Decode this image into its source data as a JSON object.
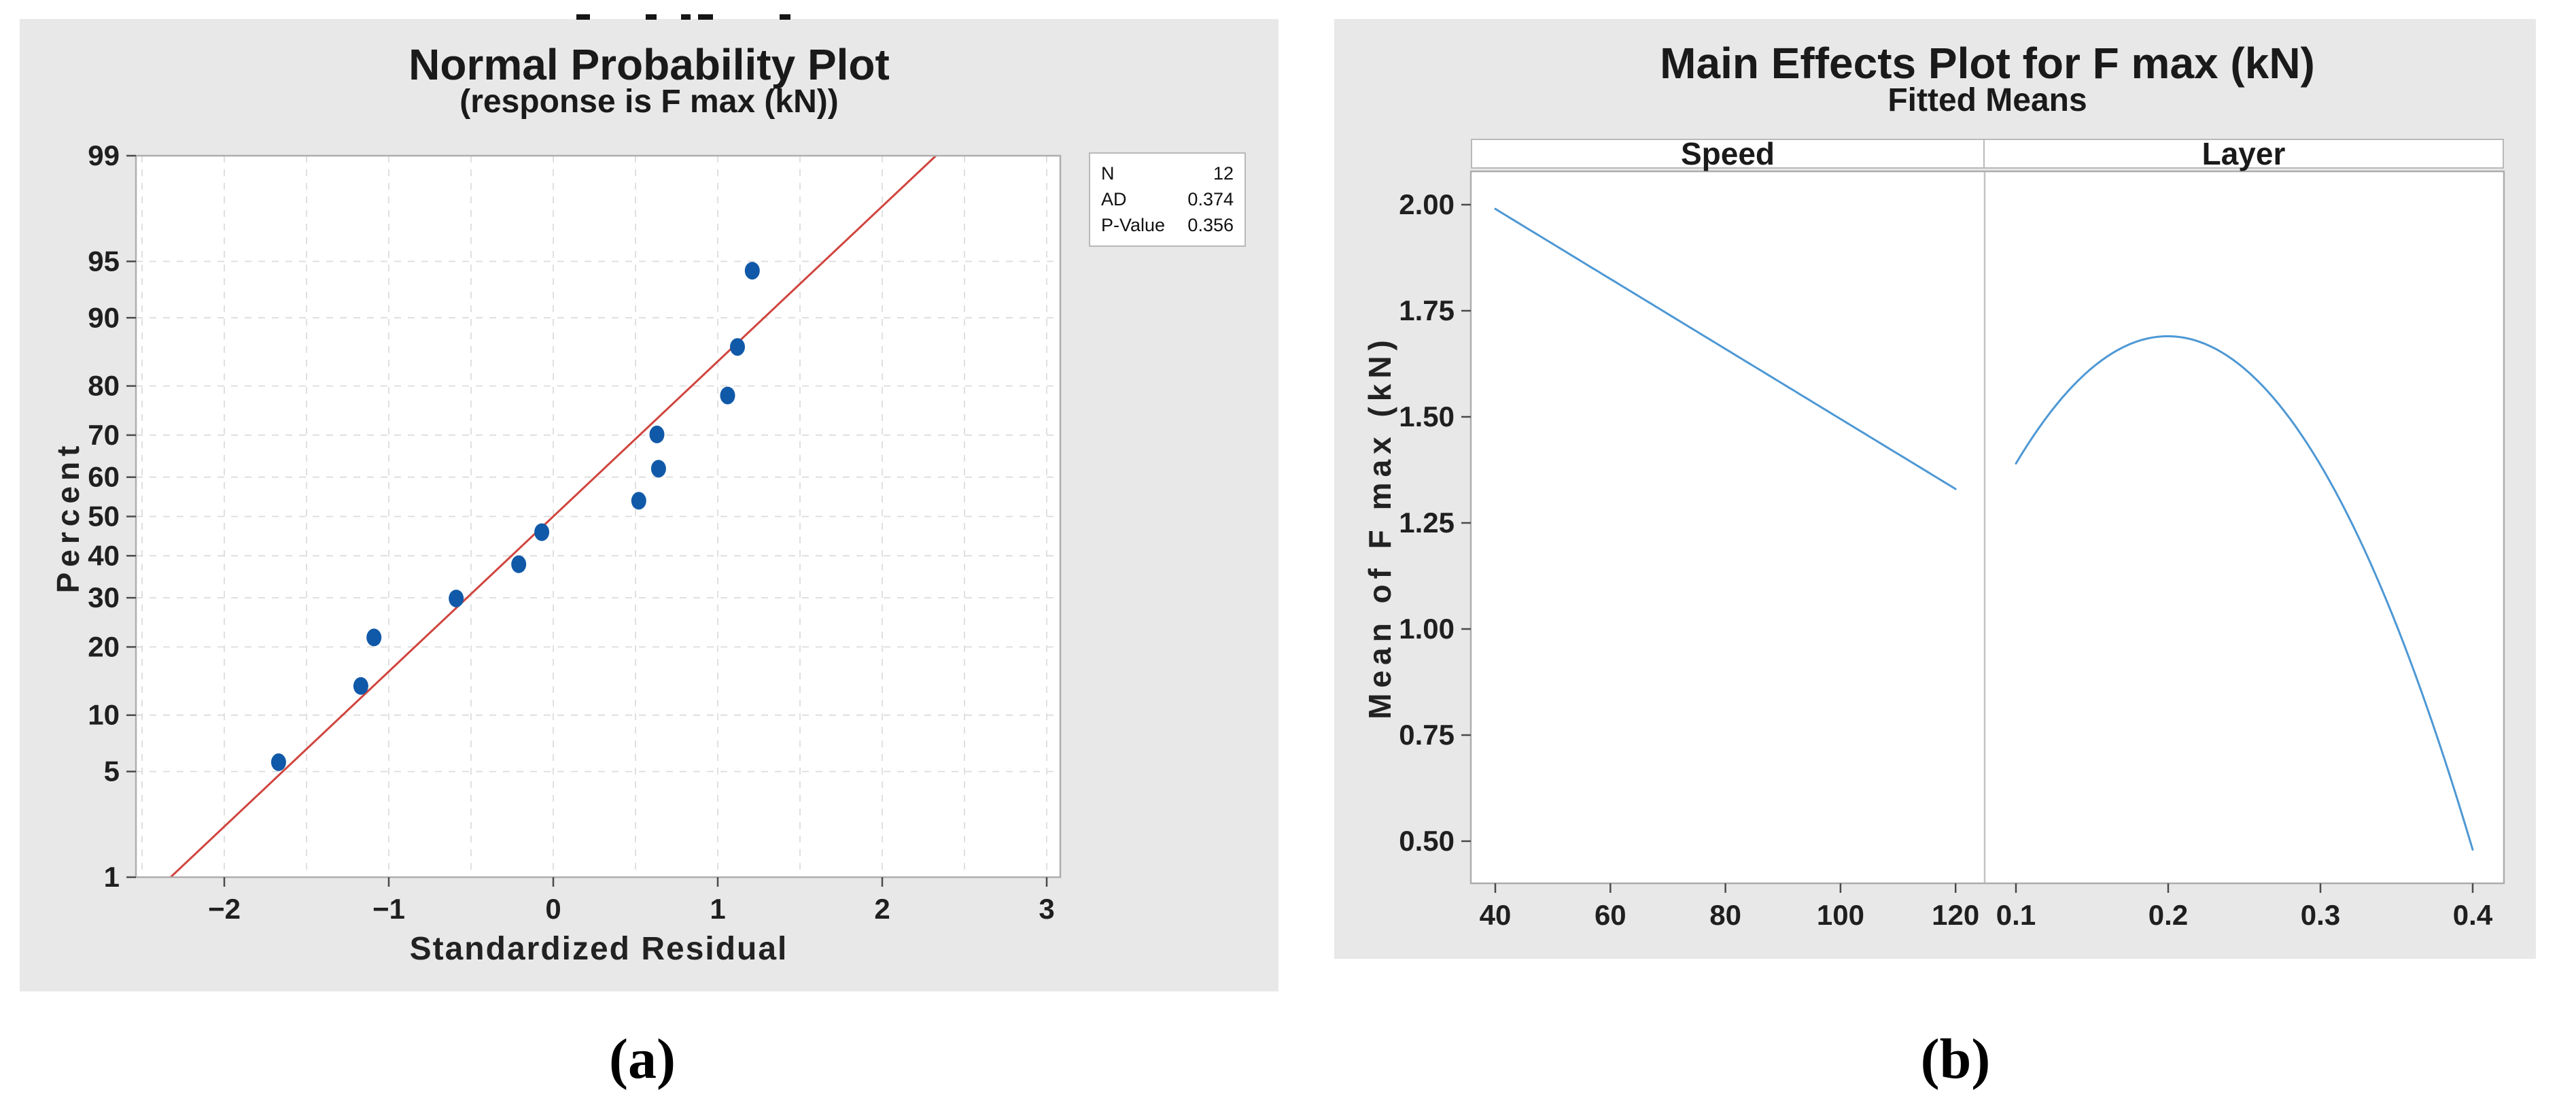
{
  "page": {
    "background": "#ffffff",
    "card_background": "#e8e8e8"
  },
  "captions": {
    "a": "(a)",
    "b": "(b)"
  },
  "chart_data": [
    {
      "id": "normal-probability-plot",
      "type": "scatter",
      "title": "Normal Probability Plot",
      "subtitle": "(response is F max (kN))",
      "xlabel": "Standardized Residual",
      "ylabel": "Percent",
      "y_scale": "normal-probability",
      "xlim": [
        -2.54,
        3.08
      ],
      "x_ticks": [
        {
          "v": -2,
          "label": "−2"
        },
        {
          "v": -1,
          "label": "−1"
        },
        {
          "v": 0,
          "label": "0"
        },
        {
          "v": 1,
          "label": "1"
        },
        {
          "v": 2,
          "label": "2"
        },
        {
          "v": 3,
          "label": "3"
        }
      ],
      "y_ticks": [
        {
          "v": 1,
          "label": "1"
        },
        {
          "v": 5,
          "label": "5"
        },
        {
          "v": 10,
          "label": "10"
        },
        {
          "v": 20,
          "label": "20"
        },
        {
          "v": 30,
          "label": "30"
        },
        {
          "v": 40,
          "label": "40"
        },
        {
          "v": 50,
          "label": "50"
        },
        {
          "v": 60,
          "label": "60"
        },
        {
          "v": 70,
          "label": "70"
        },
        {
          "v": 80,
          "label": "80"
        },
        {
          "v": 90,
          "label": "90"
        },
        {
          "v": 95,
          "label": "95"
        },
        {
          "v": 99,
          "label": "99"
        }
      ],
      "points": {
        "standardized_residual": [
          -1.67,
          -1.17,
          -1.09,
          -0.59,
          -0.21,
          -0.07,
          0.52,
          0.64,
          0.63,
          1.06,
          1.12,
          1.21
        ],
        "percent": [
          5.65,
          13.71,
          21.77,
          29.84,
          37.9,
          45.97,
          54.03,
          62.1,
          70.16,
          78.23,
          86.29,
          94.35
        ]
      },
      "fit_line": {
        "mean": 0,
        "stdev": 1,
        "from_percent": 1,
        "to_percent": 99
      },
      "legend": {
        "position": "top-right",
        "rows": [
          {
            "label": "N",
            "value": "12"
          },
          {
            "label": "AD",
            "value": "0.374"
          },
          {
            "label": "P-Value",
            "value": "0.356"
          }
        ]
      },
      "grid": {
        "style": "dashed",
        "x_step": 0.5,
        "y_at": "labeled percent ticks"
      },
      "colors": {
        "point": "#1059A8",
        "fit_line": "#D0453E",
        "grid": "#DCDCDC"
      }
    },
    {
      "id": "main-effects-plot",
      "type": "line",
      "title": "Main Effects Plot for F max (kN)",
      "subtitle": "Fitted Means",
      "ylabel": "Mean of F max (kN)",
      "ylim": [
        0.4,
        2.08
      ],
      "y_ticks": [
        {
          "v": 2.0,
          "label": "2.00"
        },
        {
          "v": 1.75,
          "label": "1.75"
        },
        {
          "v": 1.5,
          "label": "1.50"
        },
        {
          "v": 1.25,
          "label": "1.25"
        },
        {
          "v": 1.0,
          "label": "1.00"
        },
        {
          "v": 0.75,
          "label": "0.75"
        },
        {
          "v": 0.5,
          "label": "0.50"
        }
      ],
      "panels": [
        {
          "label": "Speed",
          "xlim": [
            35.7,
            125.1
          ],
          "x_ticks": [
            {
              "v": 40,
              "label": "40"
            },
            {
              "v": 60,
              "label": "60"
            },
            {
              "v": 80,
              "label": "80"
            },
            {
              "v": 100,
              "label": "100"
            },
            {
              "v": 120,
              "label": "120"
            }
          ],
          "curve_points": [
            [
              40,
              1.99
            ],
            [
              80,
              1.66
            ],
            [
              120,
              1.33
            ]
          ]
        },
        {
          "label": "Layer",
          "xlim": [
            0.079,
            0.421
          ],
          "x_ticks": [
            {
              "v": 0.1,
              "label": "0.1"
            },
            {
              "v": 0.2,
              "label": "0.2"
            },
            {
              "v": 0.3,
              "label": "0.3"
            },
            {
              "v": 0.4,
              "label": "0.4"
            }
          ],
          "curve_points": [
            [
              0.1,
              1.39
            ],
            [
              0.2,
              1.69
            ],
            [
              0.4,
              0.48
            ]
          ]
        }
      ],
      "grid": "none",
      "colors": {
        "line": "#4E98D4"
      }
    }
  ]
}
